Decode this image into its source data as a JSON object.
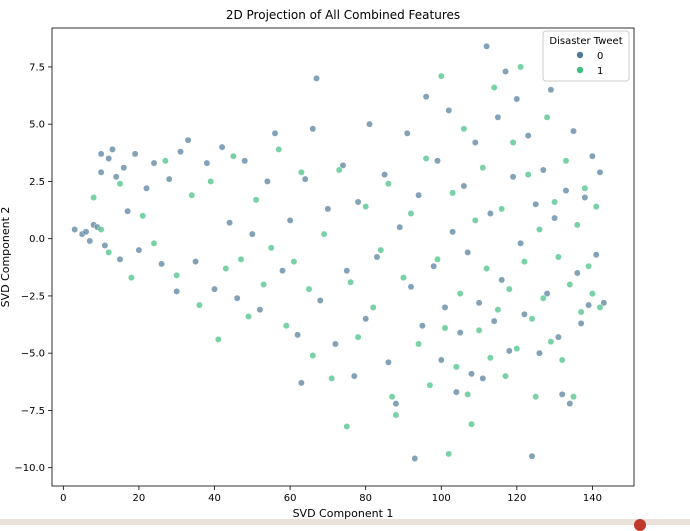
{
  "chart_data": {
    "type": "scatter",
    "title": "2D Projection of All Combined Features",
    "xlabel": "SVD Component 1",
    "ylabel": "SVD Component 2",
    "xlim": [
      -3,
      151
    ],
    "ylim": [
      -10.8,
      9.2
    ],
    "x_ticks": [
      0,
      20,
      40,
      60,
      80,
      100,
      120,
      140
    ],
    "x_tick_labels": [
      "0",
      "20",
      "40",
      "60",
      "80",
      "100",
      "120",
      "140"
    ],
    "y_ticks": [
      -10,
      -7.5,
      -5,
      -2.5,
      0,
      2.5,
      5,
      7.5
    ],
    "y_tick_labels": [
      "−10.0",
      "−7.5",
      "−5.0",
      "−2.5",
      "0.0",
      "2.5",
      "5.0",
      "7.5"
    ],
    "grid": false,
    "legend": {
      "title": "Disaster Tweet",
      "placement": "top-right",
      "entries": [
        {
          "label": "0",
          "color": "#4f7a9a"
        },
        {
          "label": "1",
          "color": "#3fbf7f"
        }
      ]
    },
    "series": [
      {
        "name": "0",
        "color": "#4f7a9a",
        "points": [
          [
            3,
            0.4
          ],
          [
            5,
            0.2
          ],
          [
            6,
            0.3
          ],
          [
            7,
            -0.1
          ],
          [
            8,
            0.6
          ],
          [
            9,
            0.5
          ],
          [
            10,
            3.7
          ],
          [
            10,
            2.9
          ],
          [
            11,
            -0.3
          ],
          [
            12,
            3.5
          ],
          [
            13,
            3.9
          ],
          [
            14,
            2.7
          ],
          [
            15,
            -0.9
          ],
          [
            16,
            3.1
          ],
          [
            17,
            1.2
          ],
          [
            19,
            3.7
          ],
          [
            20,
            -0.5
          ],
          [
            22,
            2.2
          ],
          [
            24,
            3.3
          ],
          [
            26,
            -1.1
          ],
          [
            28,
            2.6
          ],
          [
            30,
            -2.3
          ],
          [
            31,
            3.8
          ],
          [
            33,
            4.3
          ],
          [
            35,
            -1.0
          ],
          [
            38,
            3.3
          ],
          [
            40,
            -2.2
          ],
          [
            42,
            4.0
          ],
          [
            44,
            0.7
          ],
          [
            46,
            -2.6
          ],
          [
            48,
            3.4
          ],
          [
            50,
            0.2
          ],
          [
            52,
            -3.1
          ],
          [
            54,
            2.5
          ],
          [
            56,
            4.6
          ],
          [
            58,
            -1.4
          ],
          [
            60,
            0.8
          ],
          [
            62,
            -4.2
          ],
          [
            63,
            -6.3
          ],
          [
            64,
            2.6
          ],
          [
            66,
            4.8
          ],
          [
            67,
            7.0
          ],
          [
            68,
            -2.7
          ],
          [
            70,
            1.3
          ],
          [
            72,
            -4.6
          ],
          [
            74,
            3.2
          ],
          [
            75,
            -1.4
          ],
          [
            77,
            -6.0
          ],
          [
            78,
            1.6
          ],
          [
            80,
            -3.5
          ],
          [
            81,
            5.0
          ],
          [
            83,
            -0.8
          ],
          [
            85,
            2.8
          ],
          [
            86,
            -5.4
          ],
          [
            88,
            -7.2
          ],
          [
            89,
            0.5
          ],
          [
            91,
            4.6
          ],
          [
            92,
            -2.1
          ],
          [
            93,
            -9.6
          ],
          [
            94,
            1.9
          ],
          [
            95,
            -3.8
          ],
          [
            96,
            6.2
          ],
          [
            98,
            -1.2
          ],
          [
            99,
            3.4
          ],
          [
            100,
            -5.3
          ],
          [
            101,
            -3.0
          ],
          [
            102,
            5.6
          ],
          [
            103,
            0.3
          ],
          [
            104,
            -6.7
          ],
          [
            105,
            -4.1
          ],
          [
            106,
            2.3
          ],
          [
            107,
            -0.6
          ],
          [
            108,
            -5.9
          ],
          [
            109,
            4.2
          ],
          [
            110,
            -2.8
          ],
          [
            111,
            -6.1
          ],
          [
            112,
            8.4
          ],
          [
            113,
            1.1
          ],
          [
            114,
            -3.6
          ],
          [
            115,
            5.3
          ],
          [
            116,
            -1.8
          ],
          [
            117,
            7.3
          ],
          [
            118,
            -4.9
          ],
          [
            119,
            2.7
          ],
          [
            120,
            6.1
          ],
          [
            121,
            -0.2
          ],
          [
            122,
            -3.3
          ],
          [
            123,
            4.5
          ],
          [
            124,
            -9.5
          ],
          [
            125,
            1.5
          ],
          [
            126,
            -5.0
          ],
          [
            127,
            3.0
          ],
          [
            128,
            -2.4
          ],
          [
            129,
            6.5
          ],
          [
            130,
            0.9
          ],
          [
            131,
            -4.3
          ],
          [
            132,
            -6.8
          ],
          [
            133,
            2.1
          ],
          [
            134,
            -7.2
          ],
          [
            135,
            4.7
          ],
          [
            136,
            -1.5
          ],
          [
            137,
            -3.7
          ],
          [
            138,
            1.8
          ],
          [
            139,
            -2.9
          ],
          [
            140,
            3.6
          ],
          [
            141,
            -0.7
          ],
          [
            142,
            2.9
          ],
          [
            143,
            -2.8
          ]
        ]
      },
      {
        "name": "1",
        "color": "#3fbf7f",
        "points": [
          [
            8,
            1.8
          ],
          [
            10,
            0.4
          ],
          [
            12,
            -0.6
          ],
          [
            15,
            2.4
          ],
          [
            18,
            -1.7
          ],
          [
            21,
            1.0
          ],
          [
            24,
            -0.2
          ],
          [
            27,
            3.4
          ],
          [
            30,
            -1.6
          ],
          [
            34,
            1.9
          ],
          [
            36,
            -2.9
          ],
          [
            39,
            2.5
          ],
          [
            41,
            -4.4
          ],
          [
            43,
            -1.3
          ],
          [
            45,
            3.6
          ],
          [
            47,
            -0.9
          ],
          [
            49,
            -3.4
          ],
          [
            51,
            1.7
          ],
          [
            53,
            -2.0
          ],
          [
            55,
            -0.4
          ],
          [
            57,
            3.9
          ],
          [
            59,
            -3.8
          ],
          [
            61,
            -1.0
          ],
          [
            63,
            2.9
          ],
          [
            65,
            -2.2
          ],
          [
            66,
            -5.1
          ],
          [
            69,
            0.2
          ],
          [
            71,
            -6.1
          ],
          [
            73,
            3.0
          ],
          [
            75,
            -8.2
          ],
          [
            76,
            -1.9
          ],
          [
            78,
            -4.3
          ],
          [
            80,
            1.4
          ],
          [
            82,
            -3.0
          ],
          [
            84,
            -0.5
          ],
          [
            86,
            2.4
          ],
          [
            87,
            -6.9
          ],
          [
            88,
            -7.7
          ],
          [
            90,
            -1.7
          ],
          [
            92,
            1.1
          ],
          [
            94,
            -4.6
          ],
          [
            96,
            3.5
          ],
          [
            97,
            -6.4
          ],
          [
            99,
            -0.9
          ],
          [
            100,
            7.1
          ],
          [
            101,
            -3.9
          ],
          [
            102,
            -9.4
          ],
          [
            103,
            2.0
          ],
          [
            104,
            -5.6
          ],
          [
            105,
            -2.4
          ],
          [
            106,
            4.8
          ],
          [
            107,
            -6.8
          ],
          [
            108,
            -8.1
          ],
          [
            109,
            0.8
          ],
          [
            110,
            -4.0
          ],
          [
            111,
            3.1
          ],
          [
            112,
            -1.3
          ],
          [
            113,
            -5.2
          ],
          [
            114,
            6.6
          ],
          [
            115,
            -3.1
          ],
          [
            116,
            1.3
          ],
          [
            117,
            -6.0
          ],
          [
            118,
            -2.2
          ],
          [
            119,
            4.2
          ],
          [
            120,
            -4.8
          ],
          [
            121,
            7.5
          ],
          [
            122,
            -1.0
          ],
          [
            123,
            2.8
          ],
          [
            124,
            -3.5
          ],
          [
            125,
            -6.9
          ],
          [
            126,
            0.4
          ],
          [
            127,
            -2.6
          ],
          [
            128,
            5.3
          ],
          [
            129,
            -4.5
          ],
          [
            130,
            1.6
          ],
          [
            131,
            -0.8
          ],
          [
            132,
            -5.3
          ],
          [
            133,
            3.4
          ],
          [
            134,
            -2.0
          ],
          [
            135,
            -6.9
          ],
          [
            136,
            0.6
          ],
          [
            137,
            -3.2
          ],
          [
            138,
            2.2
          ],
          [
            139,
            -1.2
          ],
          [
            140,
            -2.4
          ],
          [
            141,
            1.4
          ],
          [
            142,
            -3.0
          ]
        ]
      }
    ]
  }
}
